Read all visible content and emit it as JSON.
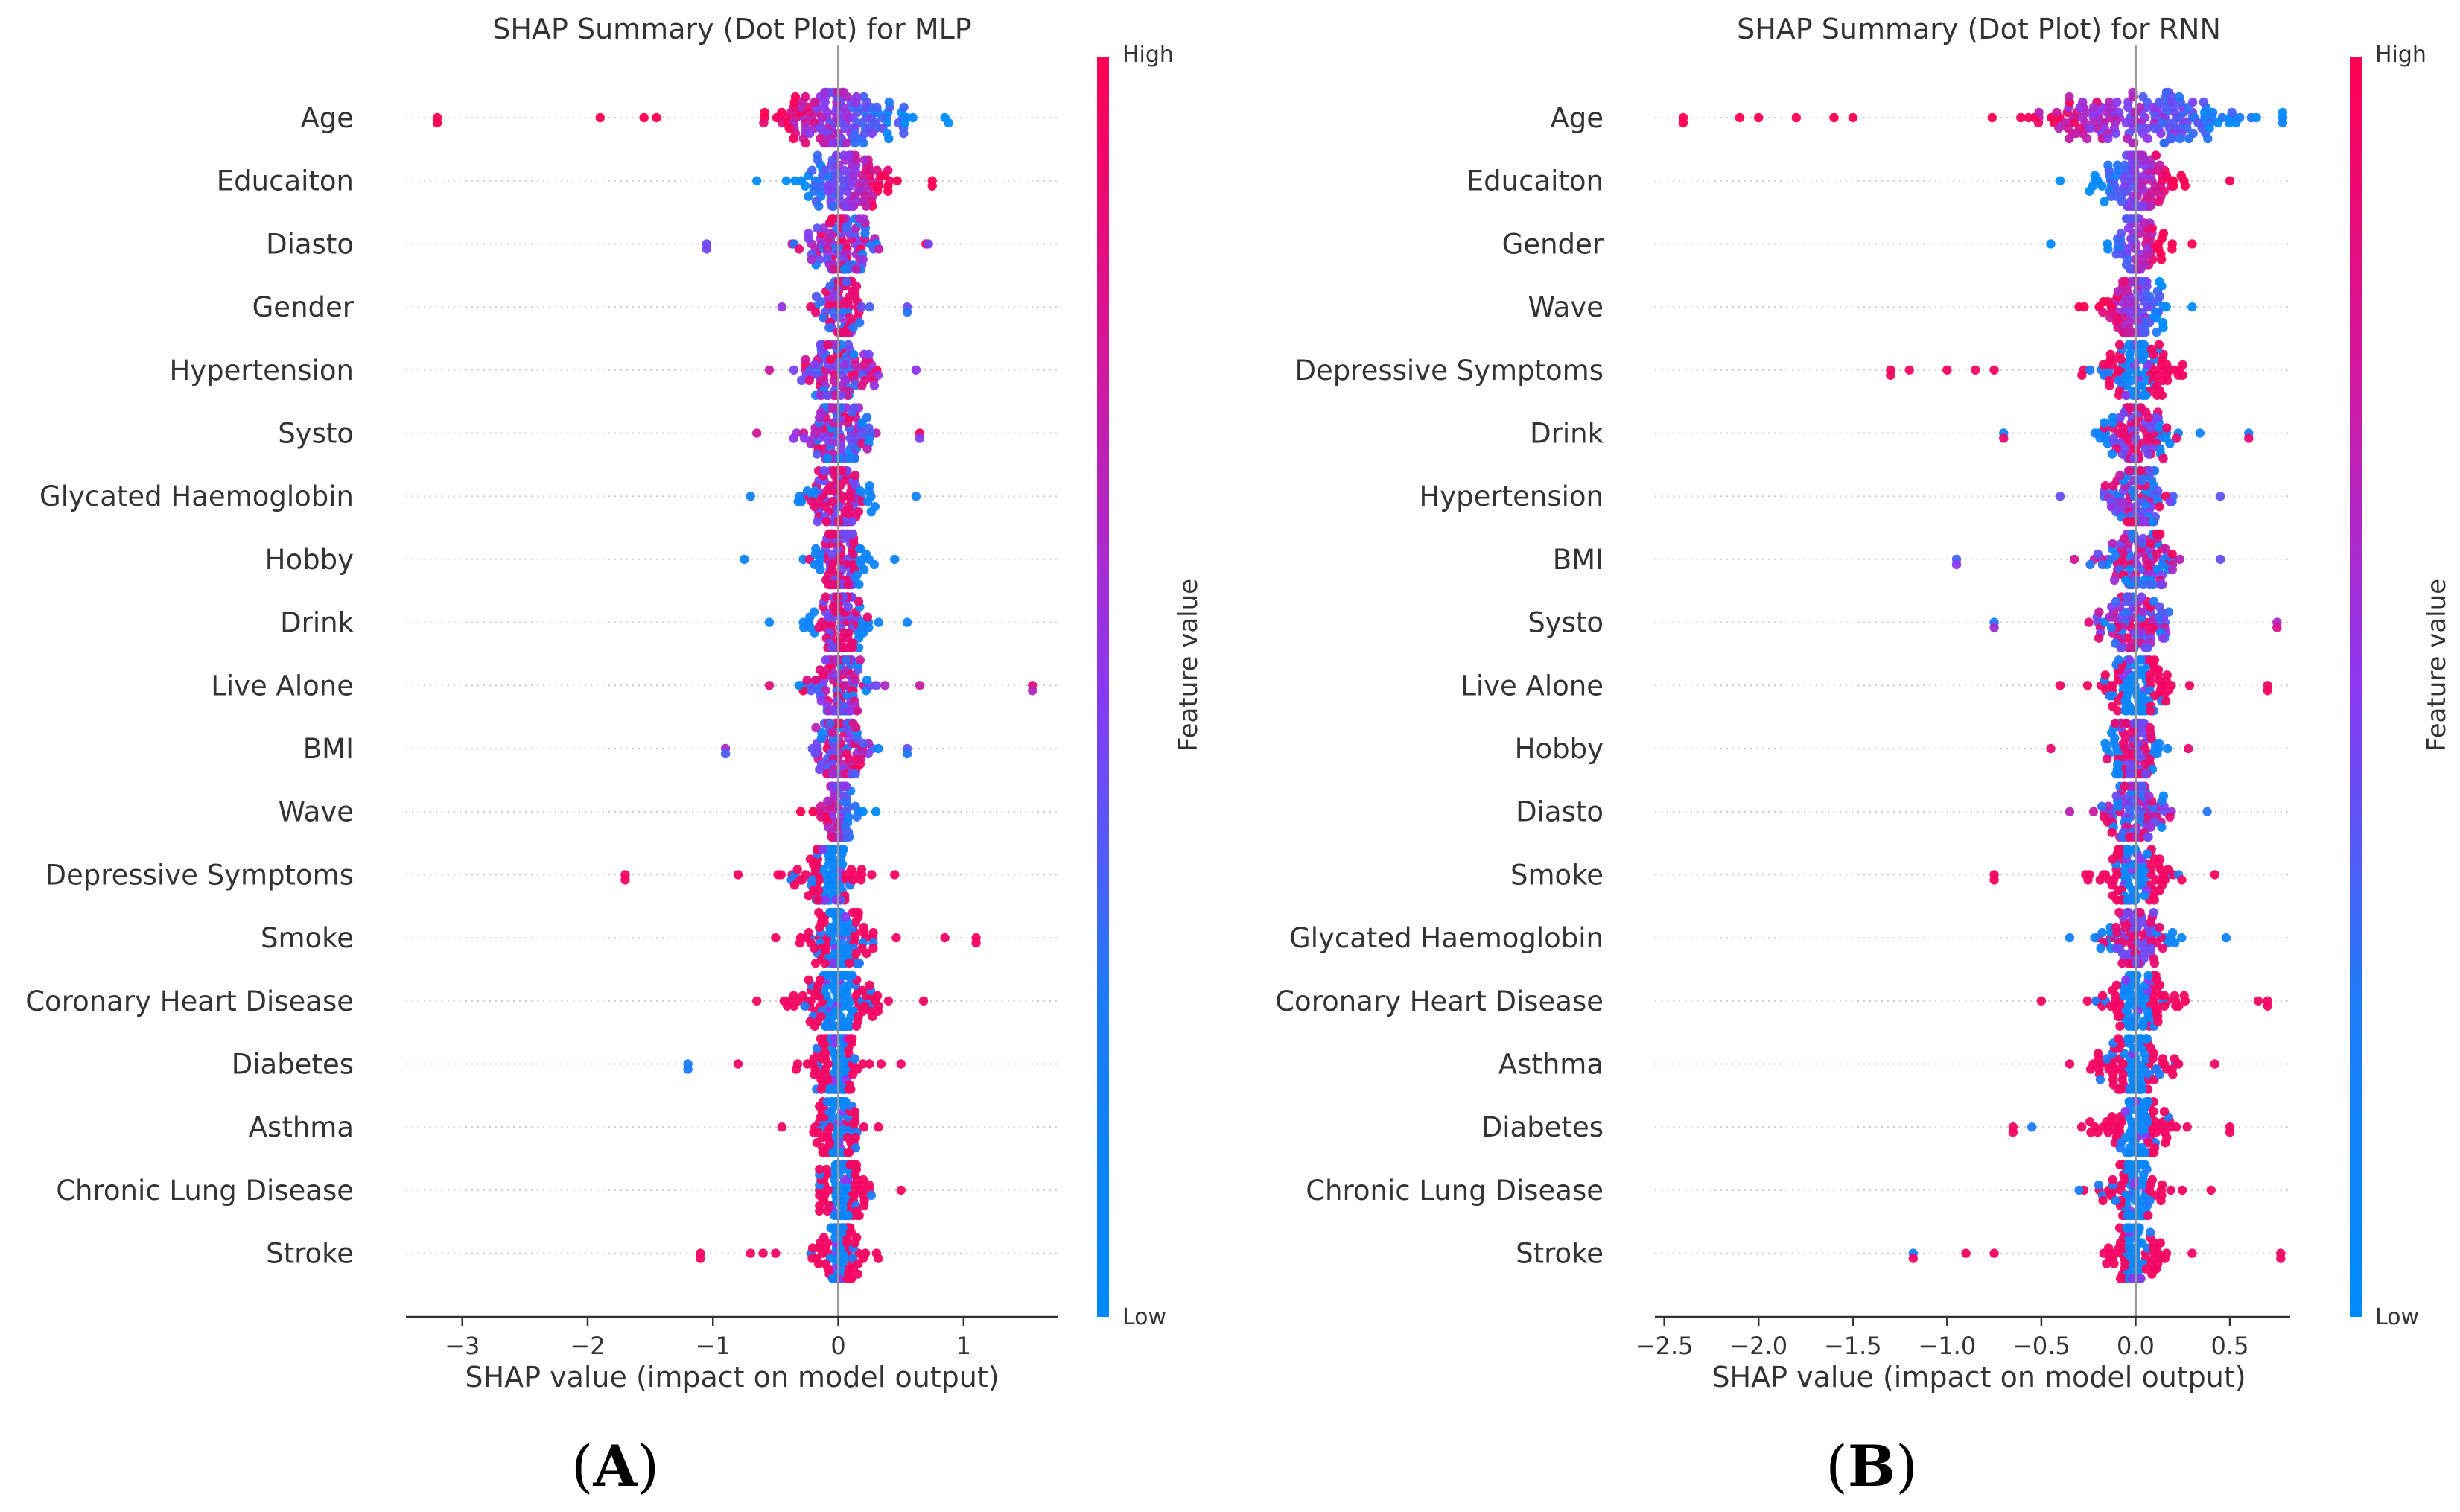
{
  "chart_data": [
    {
      "type": "scatter",
      "subtype": "shap-beeswarm",
      "panel": "A",
      "title": "SHAP Summary (Dot Plot) for MLP",
      "xlabel": "SHAP value (impact on model output)",
      "xlim": [
        -3.45,
        1.75
      ],
      "xticks": [
        -3,
        -2,
        -1,
        0,
        1
      ],
      "xtick_labels": [
        "−3",
        "−2",
        "−1",
        "0",
        "1"
      ],
      "colorbar": {
        "label": "Feature value",
        "high": "High",
        "low": "Low"
      },
      "features": [
        {
          "name": "Age",
          "min": -3.2,
          "max": 0.88,
          "spread": 0.55,
          "center": 0.0,
          "mode": "split-high-neg",
          "n": 150,
          "outliers": [
            -3.2,
            -1.9,
            -1.55,
            -1.45,
            0.85
          ]
        },
        {
          "name": "Educaiton",
          "min": -0.65,
          "max": 0.75,
          "spread": 0.35,
          "center": 0.05,
          "mode": "split-high-pos",
          "n": 110,
          "outliers": [
            0.75
          ]
        },
        {
          "name": "Diasto",
          "min": -1.05,
          "max": 0.72,
          "spread": 0.3,
          "center": 0.0,
          "mode": "mixed",
          "n": 100,
          "outliers": [
            -1.05,
            0.7
          ]
        },
        {
          "name": "Gender",
          "min": -0.45,
          "max": 0.55,
          "spread": 0.2,
          "center": 0.0,
          "mode": "mixed-red",
          "n": 85,
          "outliers": [
            0.55
          ]
        },
        {
          "name": "Hypertension",
          "min": -0.55,
          "max": 0.62,
          "spread": 0.28,
          "center": 0.0,
          "mode": "mixed",
          "n": 100,
          "outliers": []
        },
        {
          "name": "Systo",
          "min": -0.65,
          "max": 0.65,
          "spread": 0.28,
          "center": 0.0,
          "mode": "mixed",
          "n": 100,
          "outliers": [
            0.65
          ]
        },
        {
          "name": "Glycated Haemoglobin",
          "min": -0.7,
          "max": 0.62,
          "spread": 0.28,
          "center": 0.0,
          "mode": "blue-spread",
          "n": 100,
          "outliers": []
        },
        {
          "name": "Hobby",
          "min": -0.75,
          "max": 0.45,
          "spread": 0.22,
          "center": 0.0,
          "mode": "blue-spread",
          "n": 100,
          "outliers": []
        },
        {
          "name": "Drink",
          "min": -0.55,
          "max": 0.55,
          "spread": 0.25,
          "center": 0.0,
          "mode": "blue-spread",
          "n": 100,
          "outliers": []
        },
        {
          "name": "Live Alone",
          "min": -0.55,
          "max": 1.55,
          "spread": 0.28,
          "center": 0.0,
          "mode": "mixed",
          "n": 100,
          "outliers": [
            0.65,
            1.55
          ]
        },
        {
          "name": "BMI",
          "min": -0.9,
          "max": 0.55,
          "spread": 0.25,
          "center": 0.0,
          "mode": "mixed",
          "n": 95,
          "outliers": [
            -0.9,
            0.55
          ]
        },
        {
          "name": "Wave",
          "min": -0.3,
          "max": 0.3,
          "spread": 0.15,
          "center": 0.0,
          "mode": "split-high-neg",
          "n": 85,
          "outliers": []
        },
        {
          "name": "Depressive Symptoms",
          "min": -1.7,
          "max": 0.45,
          "spread": 0.28,
          "center": -0.05,
          "mode": "red-tails",
          "n": 110,
          "outliers": [
            -1.7,
            -0.8
          ]
        },
        {
          "name": "Smoke",
          "min": -0.5,
          "max": 1.1,
          "spread": 0.25,
          "center": 0.0,
          "mode": "red-tails",
          "n": 105,
          "outliers": [
            0.85,
            1.1
          ]
        },
        {
          "name": "Coronary Heart Disease",
          "min": -0.65,
          "max": 0.68,
          "spread": 0.35,
          "center": 0.0,
          "mode": "red-tails",
          "n": 120,
          "outliers": []
        },
        {
          "name": "Diabetes",
          "min": -1.2,
          "max": 0.5,
          "spread": 0.22,
          "center": 0.0,
          "mode": "red-tails",
          "n": 100,
          "outliers": [
            -1.2,
            -0.8
          ]
        },
        {
          "name": "Asthma",
          "min": -0.45,
          "max": 0.32,
          "spread": 0.18,
          "center": 0.0,
          "mode": "red-tails",
          "n": 95,
          "outliers": []
        },
        {
          "name": "Chronic Lung Disease",
          "min": -0.15,
          "max": 0.5,
          "spread": 0.2,
          "center": 0.02,
          "mode": "red-tails",
          "n": 95,
          "outliers": []
        },
        {
          "name": "Stroke",
          "min": -1.1,
          "max": 0.32,
          "spread": 0.18,
          "center": 0.0,
          "mode": "red-tails",
          "n": 95,
          "outliers": [
            -1.1,
            -0.7,
            -0.6,
            -0.5
          ]
        }
      ]
    },
    {
      "type": "scatter",
      "subtype": "shap-beeswarm",
      "panel": "B",
      "title": "SHAP Summary (Dot Plot) for RNN",
      "xlabel": "SHAP value (impact on model output)",
      "xlim": [
        -2.55,
        0.82
      ],
      "xticks": [
        -2.5,
        -2.0,
        -1.5,
        -1.0,
        -0.5,
        0.0,
        0.5
      ],
      "xtick_labels": [
        "−2.5",
        "−2.0",
        "−1.5",
        "−1.0",
        "−0.5",
        "0.0",
        "0.5"
      ],
      "colorbar": {
        "label": "Feature value",
        "high": "High",
        "low": "Low"
      },
      "features": [
        {
          "name": "Age",
          "min": -2.4,
          "max": 0.78,
          "spread": 0.55,
          "center": 0.0,
          "mode": "split-high-neg",
          "n": 170,
          "outliers": [
            -2.4,
            -2.1,
            -2.0,
            -1.8,
            -1.6,
            -1.5,
            0.78
          ]
        },
        {
          "name": "Educaiton",
          "min": -0.4,
          "max": 0.5,
          "spread": 0.2,
          "center": 0.0,
          "mode": "split-high-pos",
          "n": 120,
          "outliers": []
        },
        {
          "name": "Gender",
          "min": -0.45,
          "max": 0.3,
          "spread": 0.15,
          "center": 0.0,
          "mode": "split-high-pos",
          "n": 80,
          "outliers": []
        },
        {
          "name": "Wave",
          "min": -0.3,
          "max": 0.3,
          "spread": 0.15,
          "center": 0.0,
          "mode": "split-high-neg",
          "n": 95,
          "outliers": []
        },
        {
          "name": "Depressive Symptoms",
          "min": -1.3,
          "max": 0.25,
          "spread": 0.2,
          "center": 0.0,
          "mode": "red-tails",
          "n": 100,
          "outliers": [
            -1.3,
            -1.2,
            -1.0,
            -0.85,
            -0.75
          ]
        },
        {
          "name": "Drink",
          "min": -0.7,
          "max": 0.6,
          "spread": 0.2,
          "center": 0.0,
          "mode": "blue-spread",
          "n": 95,
          "outliers": [
            -0.7,
            0.6
          ]
        },
        {
          "name": "Hypertension",
          "min": -0.4,
          "max": 0.45,
          "spread": 0.18,
          "center": 0.0,
          "mode": "mixed",
          "n": 95,
          "outliers": []
        },
        {
          "name": "BMI",
          "min": -0.95,
          "max": 0.45,
          "spread": 0.2,
          "center": 0.0,
          "mode": "mixed",
          "n": 95,
          "outliers": [
            -0.95
          ]
        },
        {
          "name": "Systo",
          "min": -0.75,
          "max": 0.75,
          "spread": 0.2,
          "center": 0.0,
          "mode": "mixed",
          "n": 95,
          "outliers": [
            -0.75,
            0.75
          ]
        },
        {
          "name": "Live Alone",
          "min": -0.4,
          "max": 0.7,
          "spread": 0.2,
          "center": 0.0,
          "mode": "red-tails",
          "n": 100,
          "outliers": [
            0.7
          ]
        },
        {
          "name": "Hobby",
          "min": -0.45,
          "max": 0.28,
          "spread": 0.14,
          "center": 0.0,
          "mode": "blue-spread",
          "n": 95,
          "outliers": []
        },
        {
          "name": "Diasto",
          "min": -0.35,
          "max": 0.38,
          "spread": 0.16,
          "center": 0.0,
          "mode": "mixed",
          "n": 95,
          "outliers": []
        },
        {
          "name": "Smoke",
          "min": -0.75,
          "max": 0.42,
          "spread": 0.2,
          "center": 0.0,
          "mode": "red-tails",
          "n": 95,
          "outliers": [
            -0.75
          ]
        },
        {
          "name": "Glycated Haemoglobin",
          "min": -0.35,
          "max": 0.48,
          "spread": 0.18,
          "center": 0.0,
          "mode": "blue-spread",
          "n": 95,
          "outliers": []
        },
        {
          "name": "Coronary Heart Disease",
          "min": -0.5,
          "max": 0.7,
          "spread": 0.2,
          "center": 0.0,
          "mode": "red-tails",
          "n": 95,
          "outliers": [
            0.65,
            0.7
          ]
        },
        {
          "name": "Asthma",
          "min": -0.35,
          "max": 0.42,
          "spread": 0.18,
          "center": 0.0,
          "mode": "red-tails",
          "n": 95,
          "outliers": []
        },
        {
          "name": "Diabetes",
          "min": -0.65,
          "max": 0.5,
          "spread": 0.18,
          "center": 0.0,
          "mode": "red-tails",
          "n": 95,
          "outliers": [
            -0.65,
            -0.55,
            0.5
          ]
        },
        {
          "name": "Chronic Lung Disease",
          "min": -0.3,
          "max": 0.4,
          "spread": 0.16,
          "center": 0.0,
          "mode": "red-tails",
          "n": 90,
          "outliers": []
        },
        {
          "name": "Stroke",
          "min": -1.18,
          "max": 0.77,
          "spread": 0.15,
          "center": 0.0,
          "mode": "red-tails",
          "n": 85,
          "outliers": [
            -1.18,
            -0.9,
            -0.75,
            0.3,
            0.77
          ]
        }
      ]
    }
  ],
  "panel_labels": {
    "a_open": "(",
    "a_letter": "A",
    "a_close": ")",
    "b_open": "(",
    "b_letter": "B",
    "b_close": ")"
  },
  "colors": {
    "high": "#ff0052",
    "mid": "#8b38f0",
    "low": "#008bfb",
    "axis": "#333333",
    "grid": "#cccccc",
    "zero_line": "#999999"
  }
}
